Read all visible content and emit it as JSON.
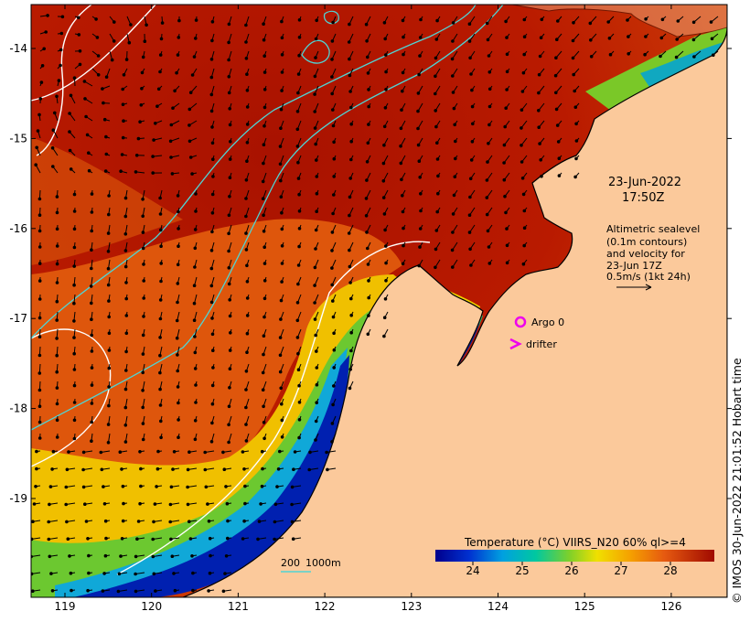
{
  "map": {
    "lon_ticks": [
      "119",
      "120",
      "121",
      "122",
      "123",
      "124",
      "125",
      "126"
    ],
    "lat_ticks": [
      "-14",
      "-15",
      "-16",
      "-17",
      "-18",
      "-19"
    ],
    "timestamp_date": "23-Jun-2022",
    "timestamp_time": "17:50Z",
    "altimetry_lines": [
      "Altimetric sealevel",
      "(0.1m contours)",
      "and velocity for",
      "23-Jun 17Z",
      "0.5m/s (1kt 24h)"
    ],
    "argo_label": "Argo 0",
    "drifter_label": "drifter",
    "scale_label_200": "200",
    "scale_label_1000": "1000m",
    "colorbar_title": "Temperature (°C) VIIRS_N20 60% ql>=4",
    "colorbar_ticks": [
      "24",
      "25",
      "26",
      "27",
      "28"
    ],
    "copyright": "© IMOS 30-Jun-2022 21:01:52 Hobart time"
  },
  "colors": {
    "land": "#fbc99b",
    "warm_sea": "#b51600",
    "mid_sea": "#e05a0c",
    "contour_white": "#ffffff",
    "isobath_cyan": "#4fd4d4",
    "argo_magenta": "#ee00ee",
    "drifter_magenta": "#ee00ee"
  }
}
